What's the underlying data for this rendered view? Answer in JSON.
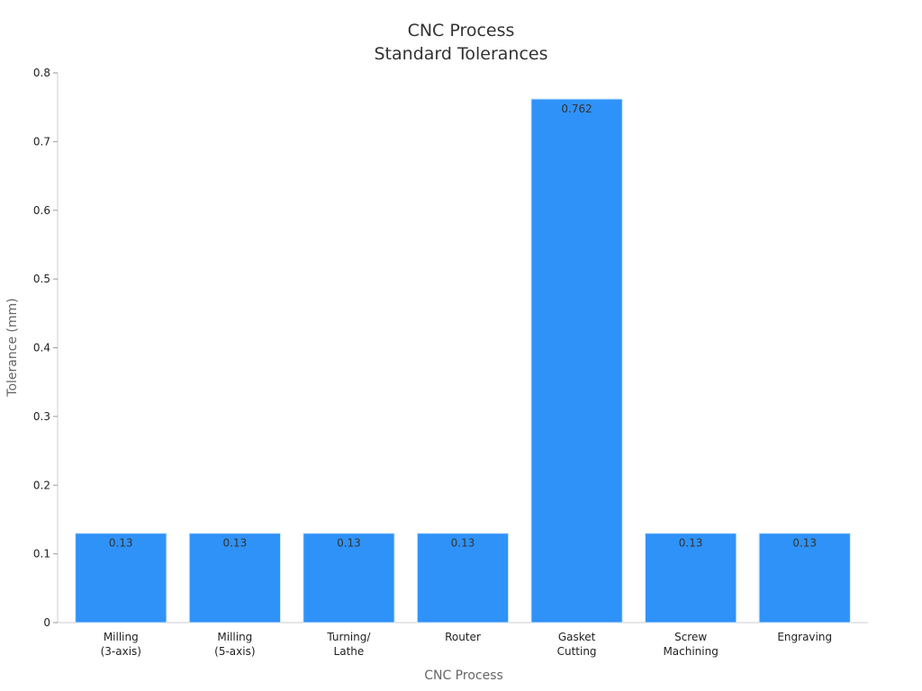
{
  "chart_data": {
    "type": "bar",
    "title_lines": [
      "CNC Process",
      "Standard Tolerances"
    ],
    "xlabel": "CNC Process",
    "ylabel": "Tolerance (mm)",
    "categories": [
      [
        "Milling",
        "(3-axis)"
      ],
      [
        "Milling",
        "(5-axis)"
      ],
      [
        "Turning/",
        "Lathe"
      ],
      [
        "Router"
      ],
      [
        "Gasket",
        "Cutting"
      ],
      [
        "Screw",
        "Machining"
      ],
      [
        "Engraving"
      ]
    ],
    "values": [
      0.13,
      0.13,
      0.13,
      0.13,
      0.762,
      0.13,
      0.13
    ],
    "value_labels": [
      "0.13",
      "0.13",
      "0.13",
      "0.13",
      "0.762",
      "0.13",
      "0.13"
    ],
    "ylim": [
      0,
      0.8
    ],
    "yticks": [
      "0",
      "0.1",
      "0.2",
      "0.3",
      "0.4",
      "0.5",
      "0.6",
      "0.7",
      "0.8"
    ],
    "grid": false,
    "legend": "none",
    "bar_color": "#2f92f8",
    "axis_color": "#cccccc"
  }
}
